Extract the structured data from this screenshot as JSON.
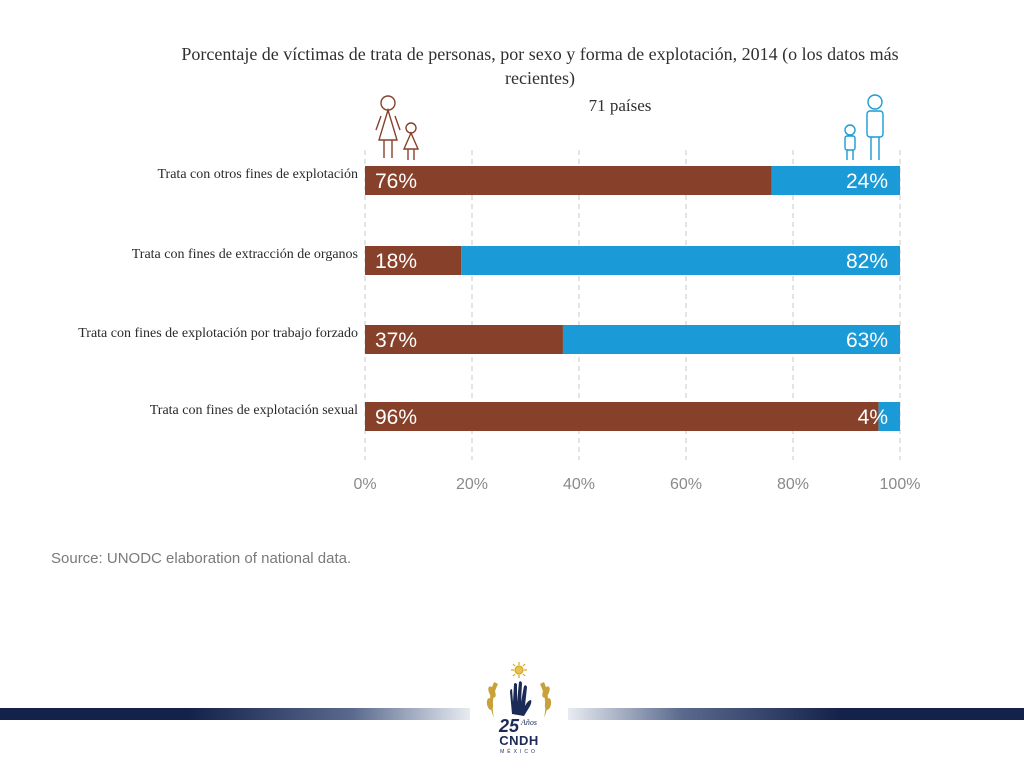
{
  "chart_data": {
    "type": "bar",
    "orientation": "horizontal-stacked-100",
    "title": "Porcentaje de víctimas de trata de personas, por sexo y forma de explotación, 2014 (o los datos más recientes)",
    "subtitle": "71 países",
    "categories": [
      "Trata con otros fines de explotación",
      "Trata con fines de extracción de organos",
      "Trata con fines de explotación por trabajo forzado",
      "Trata con fines de explotación sexual"
    ],
    "series": [
      {
        "values": [
          76,
          18,
          37,
          96
        ],
        "labels": [
          "76%",
          "18%",
          "37%",
          "96%"
        ],
        "color": "#87412a"
      },
      {
        "values": [
          24,
          82,
          63,
          4
        ],
        "labels": [
          "24%",
          "82%",
          "63%",
          "4%"
        ],
        "color": "#1a9ad6"
      }
    ],
    "xlim": [
      0,
      100
    ],
    "xticks": [
      "0%",
      "20%",
      "40%",
      "60%",
      "80%",
      "100%"
    ],
    "grid": true,
    "icons": [
      "female-figures-icon",
      "male-figures-icon"
    ],
    "colors": {
      "female_icon": "#87412a",
      "male_icon": "#1a9ad6"
    }
  },
  "source": "Source: UNODC elaboration of national data.",
  "logo": {
    "number": "25",
    "years": "Años",
    "org": "CNDH",
    "country": "MÉXICO"
  }
}
